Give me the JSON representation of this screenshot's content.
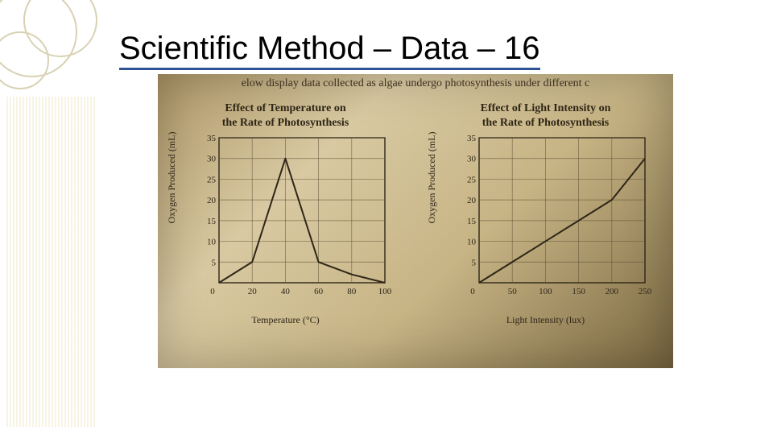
{
  "slide": {
    "title": "Scientific Method – Data – 16"
  },
  "caption": "elow display data collected as algae undergo photosynthesis under different c",
  "charts": {
    "left": {
      "type": "line",
      "title": "Effect of Temperature on\nthe Rate of Photosynthesis",
      "xlabel": "Temperature (°C)",
      "ylabel": "Oxygen Produced (mL)",
      "xlim": [
        0,
        100
      ],
      "ylim": [
        0,
        35
      ],
      "xticks": [
        0,
        20,
        40,
        60,
        80,
        100
      ],
      "yticks": [
        5,
        10,
        15,
        20,
        25,
        30,
        35
      ],
      "x_zero_label": "0",
      "points": [
        {
          "x": 0,
          "y": 0
        },
        {
          "x": 20,
          "y": 5
        },
        {
          "x": 40,
          "y": 30
        },
        {
          "x": 60,
          "y": 5
        },
        {
          "x": 80,
          "y": 2
        },
        {
          "x": 100,
          "y": 0
        }
      ],
      "line_color": "#2e2617",
      "line_width": 2,
      "grid_color": "#5a4c33",
      "axis_color": "#2e2617",
      "background_color": "transparent"
    },
    "right": {
      "type": "line",
      "title": "Effect of Light Intensity on\nthe Rate of Photosynthesis",
      "xlabel": "Light Intensity (lux)",
      "ylabel": "Oxygen Produced (mL)",
      "xlim": [
        0,
        250
      ],
      "ylim": [
        0,
        35
      ],
      "xticks": [
        0,
        50,
        100,
        150,
        200,
        250
      ],
      "yticks": [
        5,
        10,
        15,
        20,
        25,
        30,
        35
      ],
      "x_zero_label": "0",
      "points": [
        {
          "x": 0,
          "y": 0
        },
        {
          "x": 50,
          "y": 5
        },
        {
          "x": 100,
          "y": 10
        },
        {
          "x": 150,
          "y": 15
        },
        {
          "x": 200,
          "y": 20
        },
        {
          "x": 250,
          "y": 30
        }
      ],
      "line_color": "#2e2617",
      "line_width": 2,
      "grid_color": "#5a4c33",
      "axis_color": "#2e2617",
      "background_color": "transparent"
    }
  },
  "styles": {
    "title_color": "#000000",
    "title_underline_color": "#2f5496",
    "title_fontsize": 40,
    "photo_bg_colors": [
      "#b09868",
      "#d8c9a2",
      "#c7b485",
      "#7a6740"
    ],
    "deco_stripe_color": "#f0eccf",
    "deco_circle_color": "#d8d2b4"
  }
}
